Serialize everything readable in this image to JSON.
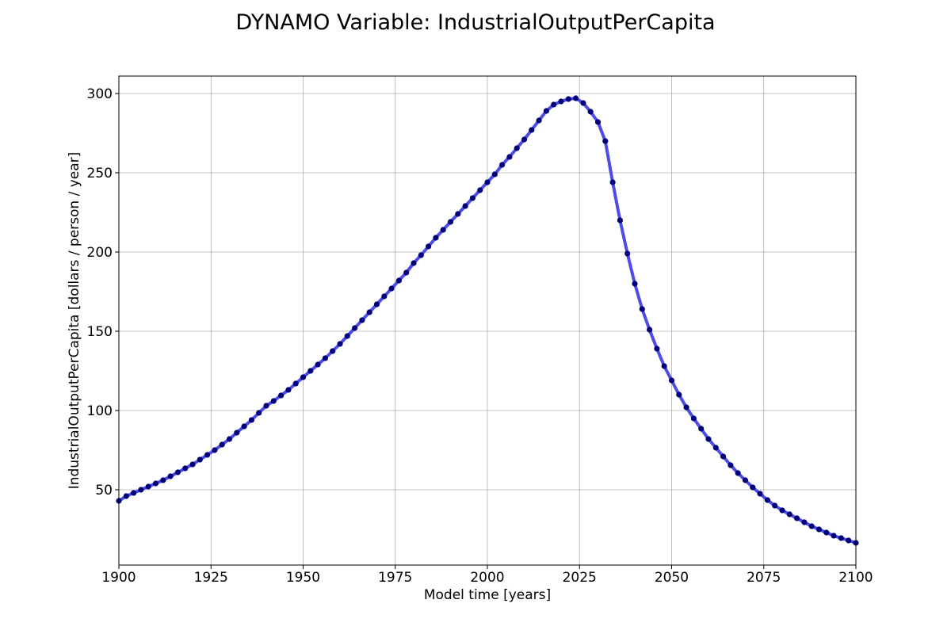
{
  "chart_data": {
    "type": "line",
    "title": "DYNAMO Variable: IndustrialOutputPerCapita",
    "xlabel": "Model time [years]",
    "ylabel": "IndustrialOutputPerCapita [dollars / person / year]",
    "xlim": [
      1900,
      2100
    ],
    "ylim": [
      2.5,
      311
    ],
    "xticks": [
      1900,
      1925,
      1950,
      1975,
      2000,
      2025,
      2050,
      2075,
      2100
    ],
    "yticks": [
      50,
      100,
      150,
      200,
      250,
      300
    ],
    "grid": true,
    "colors": {
      "line": "#4d4de6",
      "marker": "#00007a"
    },
    "series": [
      {
        "x": [
          1900,
          1902,
          1904,
          1906,
          1908,
          1910,
          1912,
          1914,
          1916,
          1918,
          1920,
          1922,
          1924,
          1926,
          1928,
          1930,
          1932,
          1934,
          1936,
          1938,
          1940,
          1942,
          1944,
          1946,
          1948,
          1950,
          1952,
          1954,
          1956,
          1958,
          1960,
          1962,
          1964,
          1966,
          1968,
          1970,
          1972,
          1974,
          1976,
          1978,
          1980,
          1982,
          1984,
          1986,
          1988,
          1990,
          1992,
          1994,
          1996,
          1998,
          2000,
          2002,
          2004,
          2006,
          2008,
          2010,
          2012,
          2014,
          2016,
          2018,
          2020,
          2022,
          2024,
          2026,
          2028,
          2030,
          2032,
          2034,
          2036,
          2038,
          2040,
          2042,
          2044,
          2046,
          2048,
          2050,
          2052,
          2054,
          2056,
          2058,
          2060,
          2062,
          2064,
          2066,
          2068,
          2070,
          2072,
          2074,
          2076,
          2078,
          2080,
          2082,
          2084,
          2086,
          2088,
          2090,
          2092,
          2094,
          2096,
          2098,
          2100
        ],
        "y": [
          43,
          46,
          48,
          50,
          52,
          54,
          56,
          58.5,
          61,
          63.5,
          66,
          69,
          72,
          75,
          78.5,
          82,
          86,
          90,
          94,
          98.5,
          103,
          106,
          109.5,
          113,
          117,
          121,
          125,
          129,
          133,
          137.5,
          142,
          147,
          152,
          157,
          162,
          167,
          172,
          177,
          182,
          187,
          193,
          198,
          203.5,
          209,
          214,
          219,
          224,
          229,
          234,
          239,
          244,
          249,
          255,
          260,
          265.5,
          271,
          277,
          283,
          289,
          293,
          295,
          296.5,
          297,
          294,
          288.5,
          282,
          270,
          244,
          220,
          199,
          180,
          164,
          151,
          139,
          128,
          119,
          110,
          102,
          95,
          88.5,
          82,
          76.5,
          71,
          65.5,
          60.5,
          56,
          51.5,
          47.5,
          43.5,
          40,
          37,
          34.5,
          32,
          29.5,
          27,
          25,
          23,
          21,
          19.5,
          18,
          16.5
        ]
      }
    ]
  }
}
